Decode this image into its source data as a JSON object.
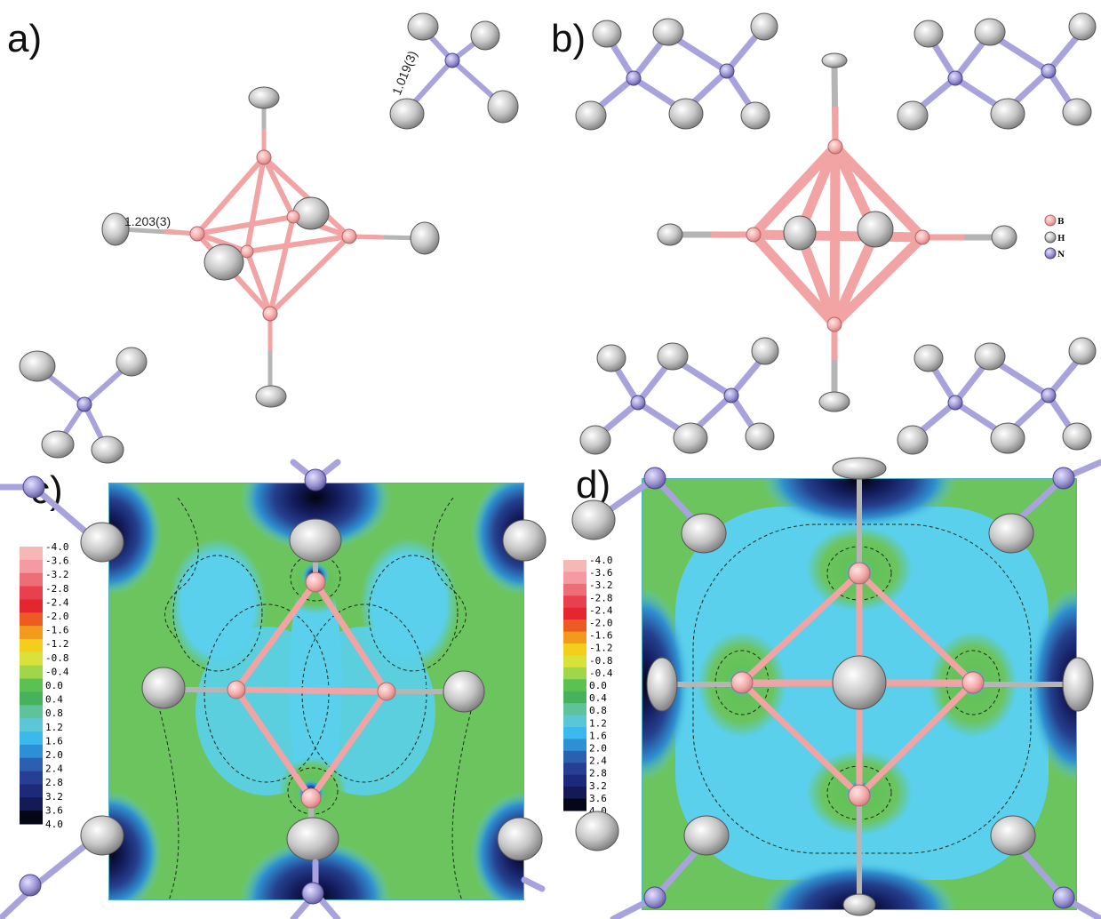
{
  "panels": {
    "a": {
      "letter": "a)",
      "bond_label_bh": "1.203(3)",
      "bond_label_nh": "1.019(3)"
    },
    "b": {
      "letter": "b)"
    },
    "c": {
      "letter": "c)"
    },
    "d": {
      "letter": "d)"
    }
  },
  "atom_legend": [
    {
      "symbol": "B",
      "color": "#f4a9a8"
    },
    {
      "symbol": "H",
      "color": "#b8b8b8"
    },
    {
      "symbol": "N",
      "color": "#9a94d2"
    }
  ],
  "colorbar": {
    "ticks": [
      "-4.0",
      "-3.6",
      "-3.2",
      "-2.8",
      "-2.4",
      "-2.0",
      "-1.6",
      "-1.2",
      "-0.8",
      "-0.4",
      "0.0",
      "0.4",
      "0.8",
      "1.2",
      "1.6",
      "2.0",
      "2.4",
      "2.8",
      "3.2",
      "3.6",
      "4.0"
    ],
    "colors": [
      "#f7b7b7",
      "#f49aa0",
      "#ee6e78",
      "#e8404f",
      "#e4262f",
      "#ee5a24",
      "#f39a1c",
      "#f3cf1c",
      "#d8e23a",
      "#9fd64a",
      "#5bc251",
      "#47b25c",
      "#5ec29a",
      "#5bc6d6",
      "#3bb8ec",
      "#2d8fd4",
      "#2c5fb0",
      "#263f94",
      "#1d2a7a",
      "#131a55",
      "#050616"
    ]
  },
  "colors": {
    "boron": "#f4a9a8",
    "hydrogen": "#b8b8b8",
    "nitrogen": "#9a94d2",
    "map_green": "#74c05c",
    "map_cyan": "#5ad0e8"
  }
}
